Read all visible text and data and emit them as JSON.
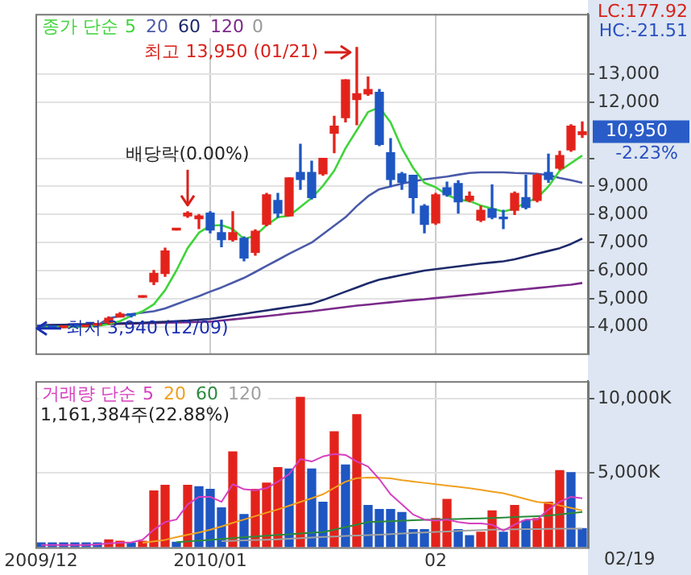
{
  "chart_data": [
    {
      "type": "candlestick",
      "legend_title": "종가 단순",
      "legend": "top left",
      "grid": true,
      "tick_labels": "y",
      "categories": [
        "2009/12",
        null,
        null,
        null,
        null,
        null,
        null,
        null,
        null,
        null,
        null,
        null,
        null,
        null,
        null,
        "2010/01",
        null,
        null,
        null,
        null,
        null,
        null,
        null,
        null,
        null,
        null,
        null,
        null,
        null,
        null,
        null,
        null,
        null,
        null,
        null,
        "02",
        null,
        null,
        null,
        null,
        null,
        null,
        null,
        null,
        null,
        null,
        null,
        null,
        null
      ],
      "ohlc": [
        [
          4000,
          4000,
          4000,
          4000
        ],
        [
          4000,
          4000,
          3940,
          3970
        ],
        [
          3970,
          4000,
          3970,
          4000
        ],
        [
          4000,
          4000,
          4000,
          4000
        ],
        [
          4000,
          4050,
          4000,
          4050
        ],
        [
          4050,
          4100,
          4050,
          4100
        ],
        [
          4150,
          4350,
          4100,
          4300
        ],
        [
          4350,
          4500,
          4350,
          4450
        ],
        [
          4450,
          4450,
          4350,
          4400
        ],
        [
          5050,
          5100,
          5050,
          5100
        ],
        [
          5600,
          6000,
          5500,
          5900
        ],
        [
          5900,
          6800,
          5800,
          6700
        ],
        [
          7450,
          7450,
          7450,
          7450
        ],
        [
          7950,
          8100,
          7900,
          8050
        ],
        [
          7850,
          8000,
          7500,
          7950
        ],
        [
          8050,
          8100,
          7350,
          7450
        ],
        [
          7350,
          7800,
          6850,
          7100
        ],
        [
          7100,
          8100,
          7050,
          7350
        ],
        [
          7150,
          7200,
          6350,
          6450
        ],
        [
          6650,
          7450,
          6550,
          7400
        ],
        [
          7650,
          8750,
          7600,
          8700
        ],
        [
          8500,
          8750,
          7900,
          8050
        ],
        [
          7950,
          9300,
          7950,
          9300
        ],
        [
          9500,
          10500,
          8900,
          9250
        ],
        [
          9500,
          9900,
          8550,
          8600
        ],
        [
          9450,
          10000,
          9400,
          10000
        ],
        [
          10900,
          11500,
          10200,
          11150
        ],
        [
          11450,
          12800,
          11300,
          12800
        ],
        [
          12100,
          13950,
          11200,
          12300
        ],
        [
          12300,
          12900,
          12250,
          12450
        ],
        [
          12350,
          12450,
          10450,
          10500
        ],
        [
          10200,
          10700,
          9000,
          9250
        ],
        [
          9450,
          9500,
          8900,
          9150
        ],
        [
          9400,
          9400,
          8050,
          8600
        ],
        [
          8300,
          8350,
          7350,
          7650
        ],
        [
          7700,
          8750,
          7650,
          8700
        ],
        [
          8950,
          9150,
          8650,
          8700
        ],
        [
          9100,
          9200,
          8050,
          8450
        ],
        [
          8500,
          8800,
          8450,
          8650
        ],
        [
          7800,
          8300,
          7750,
          8150
        ],
        [
          8200,
          9050,
          7850,
          7900
        ],
        [
          7900,
          8150,
          7500,
          7850
        ],
        [
          8150,
          8800,
          8000,
          8750
        ],
        [
          8600,
          9400,
          8200,
          8250
        ],
        [
          8500,
          9450,
          8450,
          9400
        ],
        [
          9500,
          10150,
          9150,
          9250
        ],
        [
          9650,
          10250,
          9600,
          10100
        ],
        [
          10300,
          11200,
          10250,
          11150
        ],
        [
          10850,
          11300,
          10750,
          10950
        ]
      ],
      "colors": [
        "#1e56c2",
        "#1e56c2",
        "#e3231b",
        "#1e56c2",
        "#e3231b",
        "#e3231b",
        "#e3231b",
        "#e3231b",
        "#1e56c2",
        "#e3231b",
        "#e3231b",
        "#e3231b",
        "#e3231b",
        "#e3231b",
        "#e3231b",
        "#1e56c2",
        "#1e56c2",
        "#e3231b",
        "#1e56c2",
        "#e3231b",
        "#e3231b",
        "#1e56c2",
        "#e3231b",
        "#1e56c2",
        "#1e56c2",
        "#e3231b",
        "#e3231b",
        "#e3231b",
        "#e3231b",
        "#e3231b",
        "#1e56c2",
        "#1e56c2",
        "#1e56c2",
        "#1e56c2",
        "#1e56c2",
        "#e3231b",
        "#1e56c2",
        "#1e56c2",
        "#e3231b",
        "#e3231b",
        "#1e56c2",
        "#1e56c2",
        "#e3231b",
        "#1e56c2",
        "#e3231b",
        "#1e56c2",
        "#e3231b",
        "#e3231b",
        "#e3231b"
      ],
      "series": [
        {
          "name": "5",
          "type": "line",
          "color": "#3fd43a",
          "values": [
            4000,
            3990,
            3990,
            3990,
            4010,
            4030,
            4090,
            4200,
            4390,
            4550,
            4800,
            5300,
            6000,
            6800,
            7350,
            7600,
            7620,
            7480,
            7130,
            7240,
            7620,
            7900,
            7950,
            8270,
            8590,
            9020,
            9560,
            10360,
            11000,
            11650,
            11820,
            11280,
            10360,
            9660,
            9130,
            8970,
            8700,
            8530,
            8480,
            8320,
            8210,
            8100,
            8210,
            8430,
            8590,
            9000,
            9560,
            9830,
            10100
          ]
        },
        {
          "name": "20",
          "type": "line",
          "color": "#4a5aa8",
          "values": [
            4000,
            4000,
            4000,
            4010,
            4020,
            4050,
            4300,
            4380,
            4450,
            4500,
            4550,
            4650,
            4800,
            4950,
            5090,
            5250,
            5400,
            5570,
            5740,
            5950,
            6170,
            6380,
            6600,
            6800,
            7000,
            7300,
            7600,
            7900,
            8300,
            8650,
            8900,
            9000,
            9100,
            9180,
            9250,
            9300,
            9350,
            9420,
            9480,
            9500,
            9500,
            9500,
            9480,
            9470,
            9450,
            9400,
            9300,
            9220,
            9130
          ]
        },
        {
          "name": "60",
          "type": "line",
          "color": "#1d2a6a",
          "values": [
            4050,
            4060,
            4070,
            4080,
            4090,
            4100,
            4110,
            4120,
            4130,
            4140,
            4160,
            4180,
            4200,
            4220,
            4250,
            4280,
            4340,
            4400,
            4460,
            4520,
            4580,
            4640,
            4700,
            4760,
            4820,
            4950,
            5100,
            5250,
            5400,
            5550,
            5680,
            5760,
            5840,
            5920,
            6000,
            6050,
            6100,
            6150,
            6200,
            6250,
            6290,
            6330,
            6400,
            6500,
            6600,
            6700,
            6800,
            6950,
            7140
          ]
        },
        {
          "name": "120",
          "type": "line",
          "color": "#7a2a8a",
          "values": [
            4050,
            4055,
            4060,
            4065,
            4070,
            4080,
            4090,
            4100,
            4110,
            4120,
            4130,
            4140,
            4150,
            4160,
            4170,
            4180,
            4220,
            4260,
            4300,
            4340,
            4380,
            4420,
            4470,
            4510,
            4550,
            4600,
            4650,
            4700,
            4750,
            4790,
            4830,
            4870,
            4910,
            4950,
            4980,
            5020,
            5060,
            5100,
            5140,
            5180,
            5220,
            5260,
            5300,
            5340,
            5380,
            5420,
            5460,
            5500,
            5560
          ]
        }
      ],
      "ylim": [
        3050,
        15150
      ],
      "yticks": [
        {
          "value": 4000,
          "label": "4,000"
        },
        {
          "value": 5000,
          "label": "5,000"
        },
        {
          "value": 6000,
          "label": "6,000"
        },
        {
          "value": 7000,
          "label": "7,000"
        },
        {
          "value": 8000,
          "label": "8,000"
        },
        {
          "value": 9000,
          "label": "9,000"
        },
        {
          "value": 10000,
          "label": null
        },
        {
          "value": 12000,
          "label": "12,000"
        },
        {
          "value": 13000,
          "label": "13,000"
        }
      ],
      "annotations": [
        "최고 13,950 (01/21)",
        {
          "text": "배당락(0.00%)",
          "y": 8100
        },
        "최저 3,940 (12/09)",
        "LC:177.92",
        "HC:-21.51",
        "10,950",
        "-2.23%",
        "0"
      ]
    },
    {
      "type": "bar",
      "legend_title": "거래량 단순",
      "legend": "top left",
      "grid": true,
      "categories": [
        "2009/12",
        null,
        null,
        null,
        null,
        null,
        null,
        null,
        null,
        null,
        null,
        null,
        null,
        null,
        null,
        "2010/01",
        null,
        null,
        null,
        null,
        null,
        null,
        null,
        null,
        null,
        null,
        null,
        null,
        null,
        null,
        null,
        null,
        null,
        null,
        null,
        "02",
        null,
        null,
        null,
        null,
        null,
        null,
        null,
        null,
        null,
        null,
        null,
        null,
        null
      ],
      "series": [
        {
          "type": "bar",
          "colors": [
            "#1e56c2",
            "#1e56c2",
            "#1e56c2",
            "#1e56c2",
            "#1e56c2",
            "#1e56c2",
            "#e3231b",
            "#e3231b",
            "#1e56c2",
            "#e3231b",
            "#e3231b",
            "#e3231b",
            "#1e56c2",
            "#e3231b",
            "#1e56c2",
            "#1e56c2",
            "#1e56c2",
            "#e3231b",
            "#1e56c2",
            "#e3231b",
            "#e3231b",
            "#e3231b",
            "#1e56c2",
            "#e3231b",
            "#1e56c2",
            "#1e56c2",
            "#e3231b",
            "#1e56c2",
            "#e3231b",
            "#1e56c2",
            "#1e56c2",
            "#1e56c2",
            "#1e56c2",
            "#1e56c2",
            "#1e56c2",
            "#e3231b",
            "#e3231b",
            "#1e56c2",
            "#1e56c2",
            "#e3231b",
            "#e3231b",
            "#1e56c2",
            "#e3231b",
            "#1e56c2",
            "#e3231b",
            "#e3231b",
            "#e3231b",
            "#1e56c2",
            "#1e56c2"
          ],
          "values": [
            300,
            300,
            300,
            300,
            300,
            300,
            500,
            400,
            300,
            400,
            3800,
            4180,
            340,
            4180,
            4080,
            3900,
            2650,
            6430,
            2210,
            3910,
            4320,
            5370,
            5270,
            10100,
            5270,
            3030,
            7790,
            5540,
            8940,
            2820,
            2550,
            2550,
            2350,
            1190,
            1190,
            1940,
            3230,
            1190,
            780,
            1020,
            2450,
            1020,
            2820,
            1800,
            1940,
            3030,
            5170,
            5030,
            1260
          ]
        },
        {
          "name": "5",
          "type": "line",
          "color": "#d63fbf",
          "values": [
            150,
            150,
            150,
            150,
            150,
            200,
            260,
            300,
            330,
            510,
            1190,
            1700,
            1870,
            2890,
            3400,
            3400,
            3060,
            4250,
            3910,
            3840,
            3980,
            4420,
            4930,
            5950,
            5780,
            6120,
            6290,
            6220,
            5780,
            5440,
            4590,
            3570,
            2890,
            2210,
            1870,
            1790,
            1870,
            1700,
            1600,
            1600,
            1530,
            1120,
            1530,
            1870,
            1870,
            2550,
            3060,
            3400,
            3300
          ]
        },
        {
          "name": "20",
          "type": "line",
          "color": "#f0a020",
          "values": [
            null,
            null,
            null,
            null,
            null,
            null,
            null,
            null,
            null,
            300,
            400,
            500,
            680,
            850,
            1000,
            1190,
            1400,
            1650,
            1870,
            2100,
            2330,
            2550,
            2800,
            3060,
            3300,
            3570,
            4000,
            4420,
            4660,
            4700,
            4690,
            4650,
            4520,
            4430,
            4340,
            4250,
            4160,
            4070,
            3980,
            3870,
            3750,
            3640,
            3450,
            3250,
            3060,
            2980,
            2820,
            2650,
            2480
          ]
        },
        {
          "name": "60",
          "type": "line",
          "color": "#2a8a3a",
          "values": [
            null,
            null,
            null,
            null,
            null,
            null,
            null,
            null,
            null,
            null,
            null,
            null,
            340,
            400,
            450,
            500,
            560,
            620,
            680,
            730,
            780,
            830,
            880,
            930,
            980,
            1020,
            1190,
            1360,
            1530,
            1700,
            1730,
            1760,
            1790,
            1820,
            1850,
            1870,
            1890,
            1910,
            1930,
            1950,
            1970,
            2000,
            2040,
            2070,
            2100,
            2140,
            2220,
            2300,
            2380
          ]
        },
        {
          "name": "120",
          "type": "line",
          "color": "#a0a0a0",
          "values": [
            null,
            null,
            null,
            null,
            null,
            null,
            null,
            null,
            null,
            null,
            null,
            null,
            null,
            null,
            null,
            null,
            410,
            440,
            470,
            490,
            510,
            540,
            580,
            620,
            660,
            700,
            730,
            760,
            790,
            820,
            850,
            890,
            930,
            970,
            1000,
            1040,
            1070,
            1100,
            1130,
            1160,
            1190,
            1200,
            1210,
            1220,
            1230,
            1240,
            1250,
            1255,
            1260
          ]
        }
      ],
      "ylim": [
        0,
        11200
      ],
      "yticks": [
        {
          "value": 5000,
          "label": "5,000K"
        },
        {
          "value": 10000,
          "label": "10,000K"
        }
      ],
      "annotations": [
        "1,161,384주(22.88%)",
        "02/19"
      ]
    }
  ]
}
